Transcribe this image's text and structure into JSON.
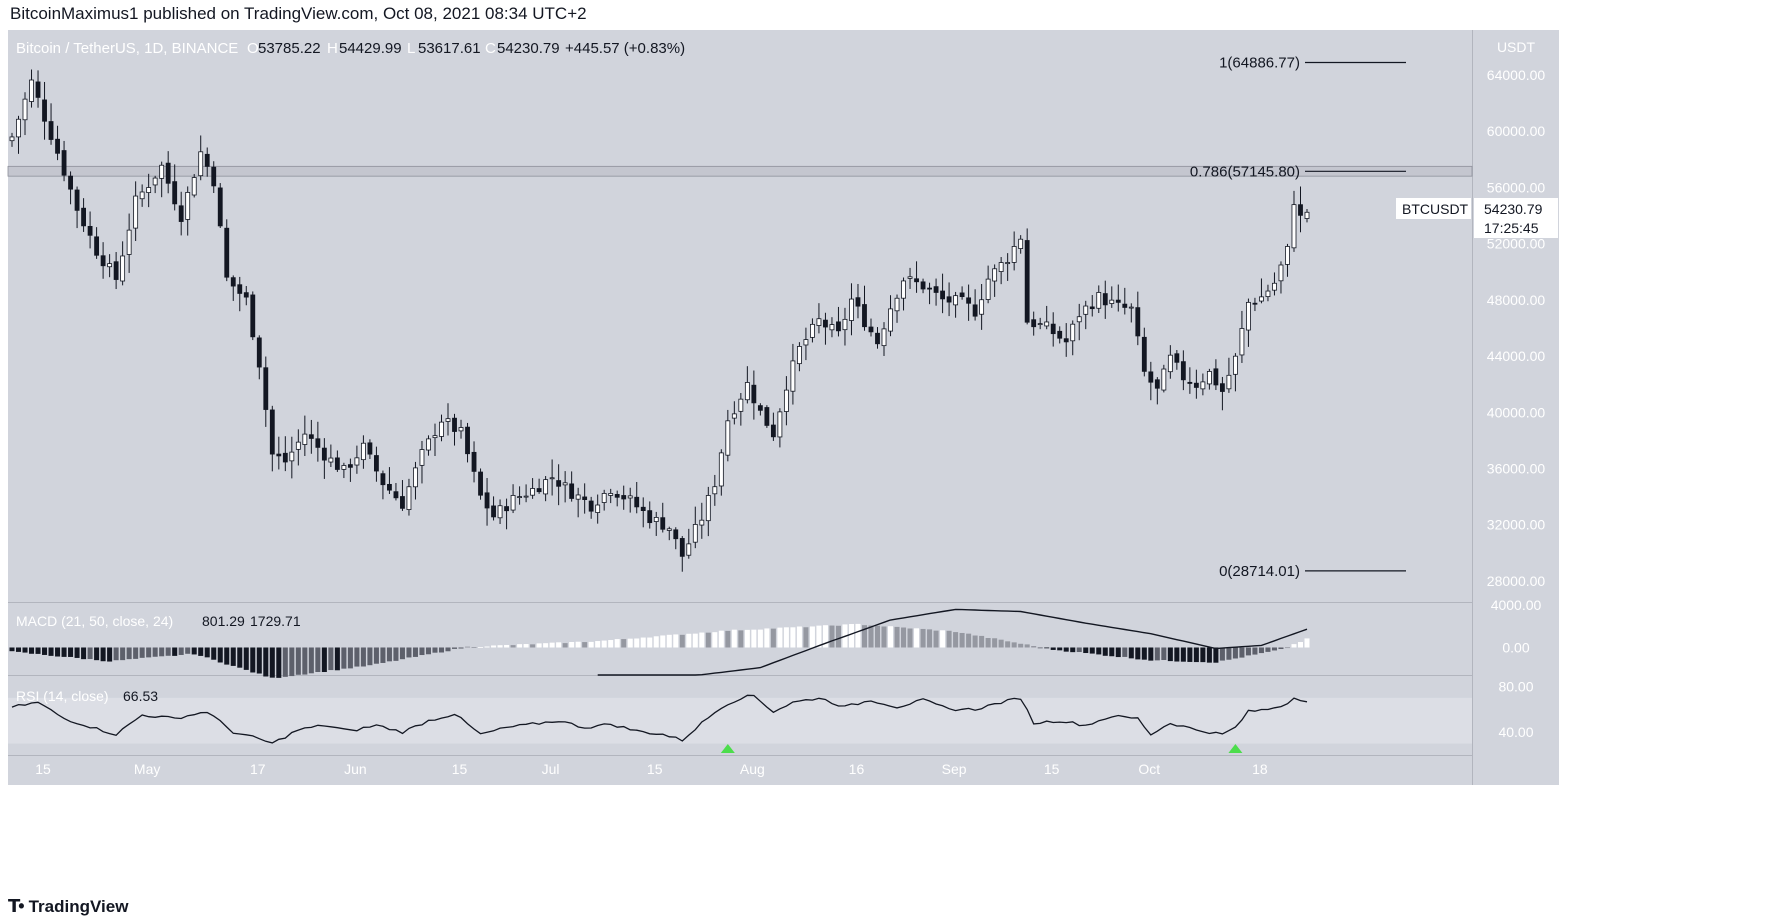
{
  "header": {
    "published": "BitcoinMaximus1 published on TradingView.com, Oct 08, 2021 08:34 UTC+2"
  },
  "legend": {
    "symbol": "Bitcoin / TetherUS, 1D, BINANCE",
    "open_label": "O",
    "open": "53785.22",
    "high_label": "H",
    "high": "54429.99",
    "low_label": "L",
    "low": "53617.61",
    "close_label": "C",
    "close": "54230.79",
    "change": "+445.57 (+0.83%)"
  },
  "price_label": {
    "ticker": "BTCUSDT",
    "price": "54230.79",
    "countdown": "17:25:45"
  },
  "axis_currency": "USDT",
  "macd_legend": {
    "title": "MACD (21, 50, close, 24)",
    "v1": "801.29",
    "v2": "1729.71"
  },
  "rsi_legend": {
    "title": "RSI (14, close)",
    "v1": "66.53"
  },
  "footer": {
    "brand": "TradingView"
  },
  "colors": {
    "background": "#d1d4dc",
    "candle_up_fill": "#ffffff",
    "candle_down_fill": "#131722",
    "resistance_band": "#c4c6cf",
    "signal_marker": "#4cdd4c"
  },
  "chart_data": [
    {
      "type": "candlestick",
      "title": "Bitcoin / TetherUS, 1D, BINANCE",
      "ylim": [
        26500,
        67200
      ],
      "x_tick_labels": [
        "15",
        "May",
        "17",
        "Jun",
        "15",
        "Jul",
        "15",
        "Aug",
        "16",
        "Sep",
        "15",
        "Oct",
        "18"
      ],
      "y_tick_labels": [
        "64000.00",
        "60000.00",
        "56000.00",
        "52000.00",
        "48000.00",
        "44000.00",
        "40000.00",
        "36000.00",
        "32000.00",
        "28000.00"
      ],
      "fib_levels": [
        {
          "label": "1(64886.77)",
          "value": 64886.77
        },
        {
          "label": "0.786(57145.80)",
          "value": 57145.8
        },
        {
          "label": "0(28714.01)",
          "value": 28714.01
        }
      ],
      "resistance_zone": [
        56800,
        57500
      ],
      "x_range_days": [
        0,
        211
      ],
      "key_points": [
        {
          "day": 0,
          "close": 59600
        },
        {
          "day": 3,
          "close": 63500
        },
        {
          "day": 7,
          "close": 58500
        },
        {
          "day": 10,
          "close": 54500
        },
        {
          "day": 13,
          "close": 51500
        },
        {
          "day": 16,
          "close": 49500
        },
        {
          "day": 19,
          "close": 55000
        },
        {
          "day": 23,
          "close": 57500
        },
        {
          "day": 26,
          "close": 54000
        },
        {
          "day": 29,
          "close": 58500
        },
        {
          "day": 31,
          "close": 56500
        },
        {
          "day": 33,
          "close": 49500
        },
        {
          "day": 36,
          "close": 48000
        },
        {
          "day": 38,
          "close": 43500
        },
        {
          "day": 40,
          "close": 37000
        },
        {
          "day": 42,
          "close": 36500
        },
        {
          "day": 45,
          "close": 38500
        },
        {
          "day": 48,
          "close": 37000
        },
        {
          "day": 51,
          "close": 35800
        },
        {
          "day": 54,
          "close": 37500
        },
        {
          "day": 57,
          "close": 35000
        },
        {
          "day": 60,
          "close": 33500
        },
        {
          "day": 63,
          "close": 37000
        },
        {
          "day": 66,
          "close": 39500
        },
        {
          "day": 69,
          "close": 38500
        },
        {
          "day": 72,
          "close": 34000
        },
        {
          "day": 74,
          "close": 32600
        },
        {
          "day": 77,
          "close": 33800
        },
        {
          "day": 80,
          "close": 34500
        },
        {
          "day": 83,
          "close": 35400
        },
        {
          "day": 86,
          "close": 34300
        },
        {
          "day": 89,
          "close": 33400
        },
        {
          "day": 92,
          "close": 34600
        },
        {
          "day": 95,
          "close": 33700
        },
        {
          "day": 98,
          "close": 32500
        },
        {
          "day": 101,
          "close": 31800
        },
        {
          "day": 103,
          "close": 29800
        },
        {
          "day": 106,
          "close": 32500
        },
        {
          "day": 108,
          "close": 35000
        },
        {
          "day": 110,
          "close": 39500
        },
        {
          "day": 113,
          "close": 42000
        },
        {
          "day": 115,
          "close": 40000
        },
        {
          "day": 117,
          "close": 38500
        },
        {
          "day": 119,
          "close": 42000
        },
        {
          "day": 121,
          "close": 44500
        },
        {
          "day": 124,
          "close": 46500
        },
        {
          "day": 127,
          "close": 45500
        },
        {
          "day": 129,
          "close": 48000
        },
        {
          "day": 131,
          "close": 46500
        },
        {
          "day": 133,
          "close": 45000
        },
        {
          "day": 135,
          "close": 47500
        },
        {
          "day": 137,
          "close": 49500
        },
        {
          "day": 140,
          "close": 49000
        },
        {
          "day": 143,
          "close": 48000
        },
        {
          "day": 146,
          "close": 47800
        },
        {
          "day": 148,
          "close": 47200
        },
        {
          "day": 150,
          "close": 49500
        },
        {
          "day": 153,
          "close": 51000
        },
        {
          "day": 155,
          "close": 52500
        },
        {
          "day": 156,
          "close": 46500
        },
        {
          "day": 159,
          "close": 46000
        },
        {
          "day": 162,
          "close": 45000
        },
        {
          "day": 164,
          "close": 47000
        },
        {
          "day": 167,
          "close": 48200
        },
        {
          "day": 170,
          "close": 47500
        },
        {
          "day": 172,
          "close": 47300
        },
        {
          "day": 174,
          "close": 42800
        },
        {
          "day": 176,
          "close": 41500
        },
        {
          "day": 178,
          "close": 43800
        },
        {
          "day": 180,
          "close": 42500
        },
        {
          "day": 182,
          "close": 42000
        },
        {
          "day": 184,
          "close": 42800
        },
        {
          "day": 186,
          "close": 41500
        },
        {
          "day": 188,
          "close": 43800
        },
        {
          "day": 190,
          "close": 47800
        },
        {
          "day": 192,
          "close": 48200
        },
        {
          "day": 194,
          "close": 49200
        },
        {
          "day": 196,
          "close": 51500
        },
        {
          "day": 197,
          "close": 55100
        },
        {
          "day": 198,
          "close": 53800
        },
        {
          "day": 199,
          "close": 54230
        }
      ]
    },
    {
      "type": "bar",
      "title": "MACD (21, 50, close, 24)",
      "ylim": [
        -2600,
        4300
      ],
      "y_tick_labels": [
        "4000.00",
        "0.00"
      ],
      "histogram_key_points": [
        {
          "day": 0,
          "v": -400
        },
        {
          "day": 15,
          "v": -1300
        },
        {
          "day": 28,
          "v": -600
        },
        {
          "day": 40,
          "v": -2900
        },
        {
          "day": 55,
          "v": -1700
        },
        {
          "day": 70,
          "v": 50
        },
        {
          "day": 90,
          "v": 600
        },
        {
          "day": 110,
          "v": 1600
        },
        {
          "day": 130,
          "v": 2200
        },
        {
          "day": 145,
          "v": 1500
        },
        {
          "day": 160,
          "v": -200
        },
        {
          "day": 175,
          "v": -1200
        },
        {
          "day": 185,
          "v": -1400
        },
        {
          "day": 195,
          "v": -200
        },
        {
          "day": 199,
          "v": 801.29
        }
      ],
      "line_key_points": [
        {
          "day": 90,
          "v": -2700
        },
        {
          "day": 105,
          "v": -2650
        },
        {
          "day": 115,
          "v": -1900
        },
        {
          "day": 125,
          "v": 400
        },
        {
          "day": 135,
          "v": 2600
        },
        {
          "day": 145,
          "v": 3600
        },
        {
          "day": 155,
          "v": 3400
        },
        {
          "day": 165,
          "v": 2300
        },
        {
          "day": 175,
          "v": 1300
        },
        {
          "day": 185,
          "v": -100
        },
        {
          "day": 192,
          "v": 200
        },
        {
          "day": 199,
          "v": 1729.71
        }
      ]
    },
    {
      "type": "line",
      "title": "RSI (14, close)",
      "ylim": [
        20,
        90
      ],
      "y_tick_labels": [
        "80.00",
        "40.00"
      ],
      "key_points": [
        {
          "day": 0,
          "v": 62
        },
        {
          "day": 4,
          "v": 66
        },
        {
          "day": 8,
          "v": 52
        },
        {
          "day": 13,
          "v": 43
        },
        {
          "day": 16,
          "v": 38
        },
        {
          "day": 20,
          "v": 55
        },
        {
          "day": 25,
          "v": 52
        },
        {
          "day": 30,
          "v": 58
        },
        {
          "day": 34,
          "v": 40
        },
        {
          "day": 38,
          "v": 34
        },
        {
          "day": 40,
          "v": 30
        },
        {
          "day": 44,
          "v": 42
        },
        {
          "day": 48,
          "v": 46
        },
        {
          "day": 52,
          "v": 41
        },
        {
          "day": 56,
          "v": 46
        },
        {
          "day": 60,
          "v": 40
        },
        {
          "day": 64,
          "v": 50
        },
        {
          "day": 68,
          "v": 56
        },
        {
          "day": 72,
          "v": 38
        },
        {
          "day": 76,
          "v": 44
        },
        {
          "day": 80,
          "v": 47
        },
        {
          "day": 84,
          "v": 50
        },
        {
          "day": 88,
          "v": 44
        },
        {
          "day": 92,
          "v": 47
        },
        {
          "day": 96,
          "v": 41
        },
        {
          "day": 100,
          "v": 38
        },
        {
          "day": 103,
          "v": 33
        },
        {
          "day": 106,
          "v": 48
        },
        {
          "day": 109,
          "v": 62
        },
        {
          "day": 112,
          "v": 70
        },
        {
          "day": 114,
          "v": 72
        },
        {
          "day": 117,
          "v": 58
        },
        {
          "day": 120,
          "v": 66
        },
        {
          "day": 124,
          "v": 70
        },
        {
          "day": 128,
          "v": 62
        },
        {
          "day": 132,
          "v": 68
        },
        {
          "day": 136,
          "v": 62
        },
        {
          "day": 140,
          "v": 68
        },
        {
          "day": 144,
          "v": 60
        },
        {
          "day": 148,
          "v": 60
        },
        {
          "day": 152,
          "v": 66
        },
        {
          "day": 155,
          "v": 70
        },
        {
          "day": 157,
          "v": 48
        },
        {
          "day": 161,
          "v": 50
        },
        {
          "day": 165,
          "v": 46
        },
        {
          "day": 169,
          "v": 54
        },
        {
          "day": 173,
          "v": 52
        },
        {
          "day": 175,
          "v": 38
        },
        {
          "day": 178,
          "v": 48
        },
        {
          "day": 182,
          "v": 42
        },
        {
          "day": 186,
          "v": 38
        },
        {
          "day": 188,
          "v": 44
        },
        {
          "day": 190,
          "v": 58
        },
        {
          "day": 193,
          "v": 60
        },
        {
          "day": 196,
          "v": 65
        },
        {
          "day": 197,
          "v": 71
        },
        {
          "day": 199,
          "v": 66.53
        }
      ],
      "signal_markers_days": [
        110,
        188
      ]
    }
  ]
}
